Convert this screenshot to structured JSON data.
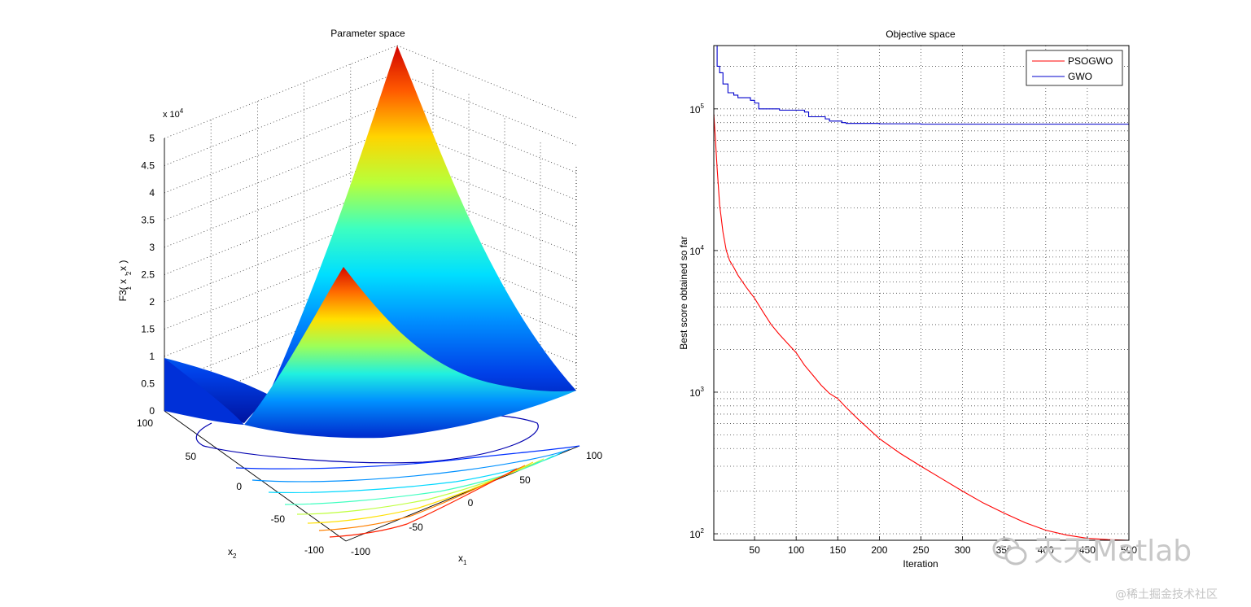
{
  "chart_data": [
    {
      "type": "surface",
      "title": "Parameter space",
      "xlabel": "x",
      "xlabel_sub": "1",
      "ylabel": "x",
      "ylabel_sub": "2",
      "zlabel": "F3( x , x )",
      "zlabel_sub1": "1",
      "zlabel_sub2": "2",
      "z_exponent_label": "x 10",
      "z_exponent": "4",
      "x_ticks": [
        "-100",
        "-50",
        "0",
        "50",
        "100"
      ],
      "y_ticks": [
        "-100",
        "-50",
        "0",
        "50",
        "100"
      ],
      "z_ticks": [
        "0",
        "0.5",
        "1",
        "1.5",
        "2",
        "2.5",
        "3",
        "3.5",
        "4",
        "4.5",
        "5"
      ],
      "xlim": [
        -100,
        100
      ],
      "ylim": [
        -100,
        100
      ],
      "zlim": [
        0,
        50000
      ],
      "colormap": "jet",
      "grid": true
    },
    {
      "type": "line",
      "title": "Objective space",
      "xlabel": "Iteration",
      "ylabel": "Best score obtained so far",
      "yscale": "log",
      "xlim": [
        1,
        500
      ],
      "ylim": [
        90,
        280000
      ],
      "x_ticks": [
        "50",
        "100",
        "150",
        "200",
        "250",
        "300",
        "350",
        "400",
        "450",
        "500"
      ],
      "y_tick_base": "10",
      "y_tick_exponents": [
        "2",
        "3",
        "4",
        "5"
      ],
      "grid": true,
      "legend_position": "top-right",
      "series": [
        {
          "name": "PSOGWO",
          "color": "#ff0000",
          "x": [
            1,
            3,
            5,
            8,
            12,
            16,
            20,
            25,
            30,
            40,
            50,
            60,
            70,
            80,
            90,
            100,
            110,
            120,
            130,
            140,
            150,
            160,
            175,
            200,
            225,
            250,
            275,
            300,
            325,
            350,
            375,
            400,
            425,
            450,
            475,
            500
          ],
          "y": [
            92000,
            60000,
            38000,
            21000,
            13500,
            10000,
            8500,
            7600,
            6700,
            5500,
            4600,
            3700,
            3000,
            2550,
            2200,
            1900,
            1550,
            1320,
            1120,
            980,
            900,
            780,
            640,
            470,
            370,
            300,
            245,
            200,
            165,
            140,
            120,
            106,
            98,
            93,
            91,
            90
          ]
        },
        {
          "name": "GWO",
          "color": "#0000cc",
          "x": [
            3,
            5,
            8,
            12,
            18,
            25,
            30,
            45,
            50,
            55,
            80,
            110,
            115,
            135,
            140,
            155,
            160,
            200,
            250,
            300,
            400,
            500
          ],
          "y": [
            280000,
            200000,
            180000,
            150000,
            130000,
            125000,
            120000,
            115000,
            110000,
            100000,
            98000,
            95000,
            88000,
            85000,
            82000,
            80000,
            79000,
            78500,
            78000,
            78000,
            78000,
            78000
          ]
        }
      ]
    }
  ],
  "watermark": {
    "logo_text": "天天Matlab",
    "credit": "@稀土掘金技术社区"
  }
}
